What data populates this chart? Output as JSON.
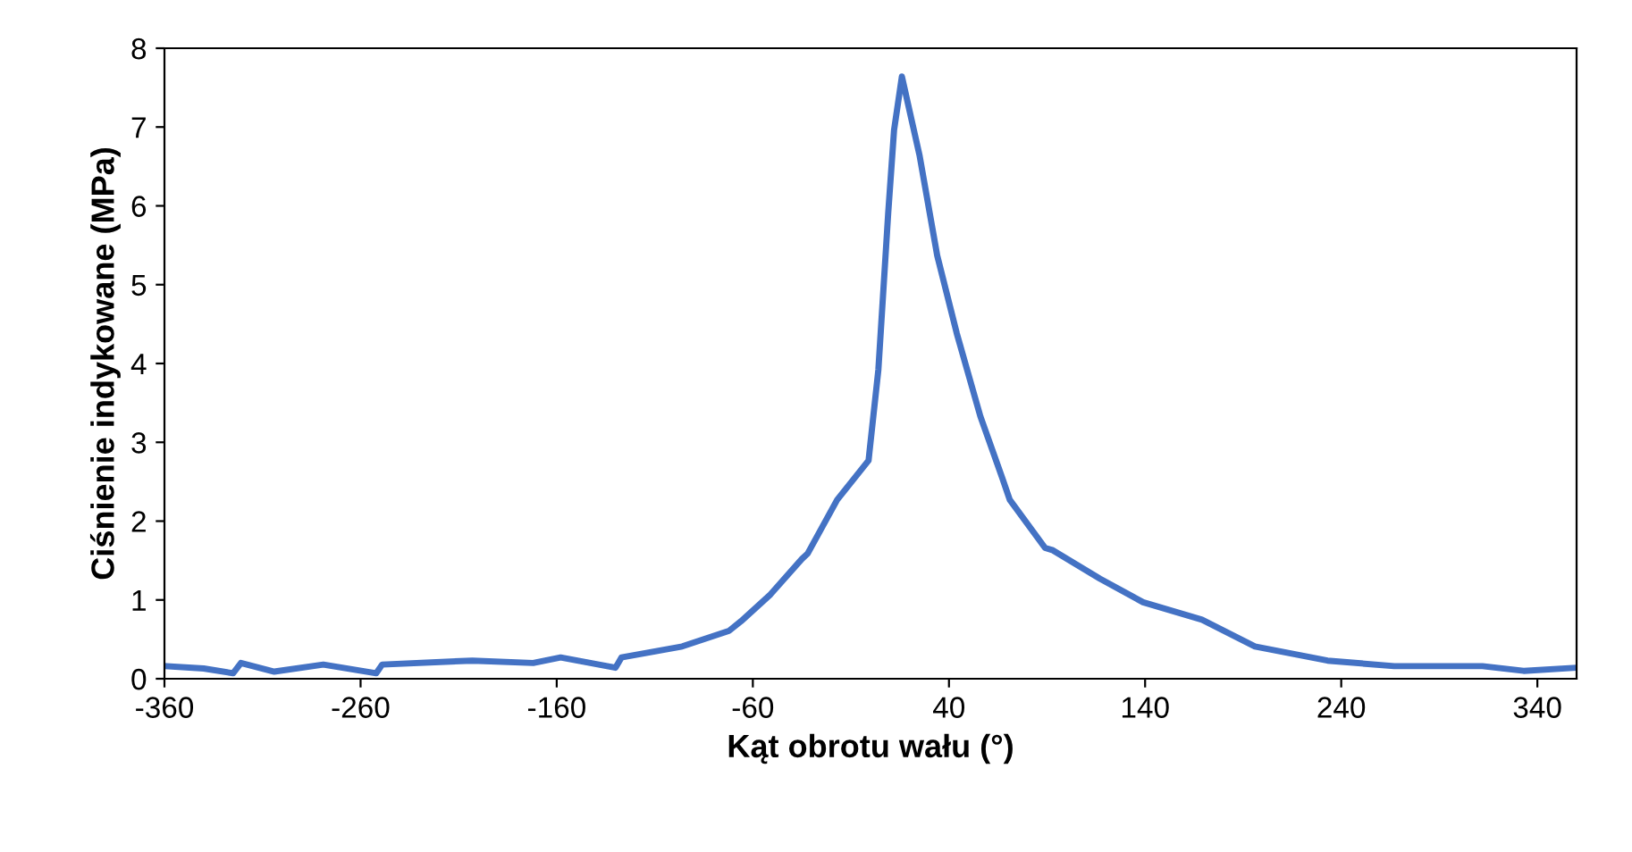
{
  "chart_data": {
    "type": "line",
    "xlabel": "Kąt obrotu wału (°)",
    "ylabel": "Ciśnienie indykowane (MPa)",
    "xlim": [
      -360,
      360
    ],
    "xticks": [
      -360,
      -260,
      -160,
      -60,
      40,
      140,
      240,
      340
    ],
    "ylim": [
      0,
      8
    ],
    "yticks": [
      0,
      1,
      2,
      3,
      4,
      5,
      6,
      7,
      8
    ],
    "grid": false,
    "marker": "none",
    "line_style": "solid",
    "series": [
      {
        "color": "#4472c4",
        "x": [
          -359,
          -340,
          -325,
          -321,
          -304,
          -279,
          -252,
          -249,
          -203,
          -172,
          -158,
          -130,
          -127,
          -96,
          -72,
          -66,
          -51,
          -35,
          -32,
          -17,
          -1,
          4,
          9,
          12,
          16,
          25,
          34,
          44,
          56,
          67,
          71,
          89,
          93,
          117,
          139,
          169,
          196,
          233,
          267,
          312,
          333,
          360
        ],
        "values": [
          0.16,
          0.13,
          0.07,
          0.2,
          0.09,
          0.18,
          0.07,
          0.18,
          0.23,
          0.2,
          0.27,
          0.14,
          0.27,
          0.41,
          0.61,
          0.73,
          1.07,
          1.52,
          1.59,
          2.27,
          2.77,
          3.92,
          5.9,
          6.96,
          7.64,
          6.64,
          5.37,
          4.38,
          3.33,
          2.56,
          2.27,
          1.66,
          1.63,
          1.27,
          0.97,
          0.75,
          0.41,
          0.23,
          0.16,
          0.16,
          0.1,
          0.14
        ]
      }
    ]
  }
}
